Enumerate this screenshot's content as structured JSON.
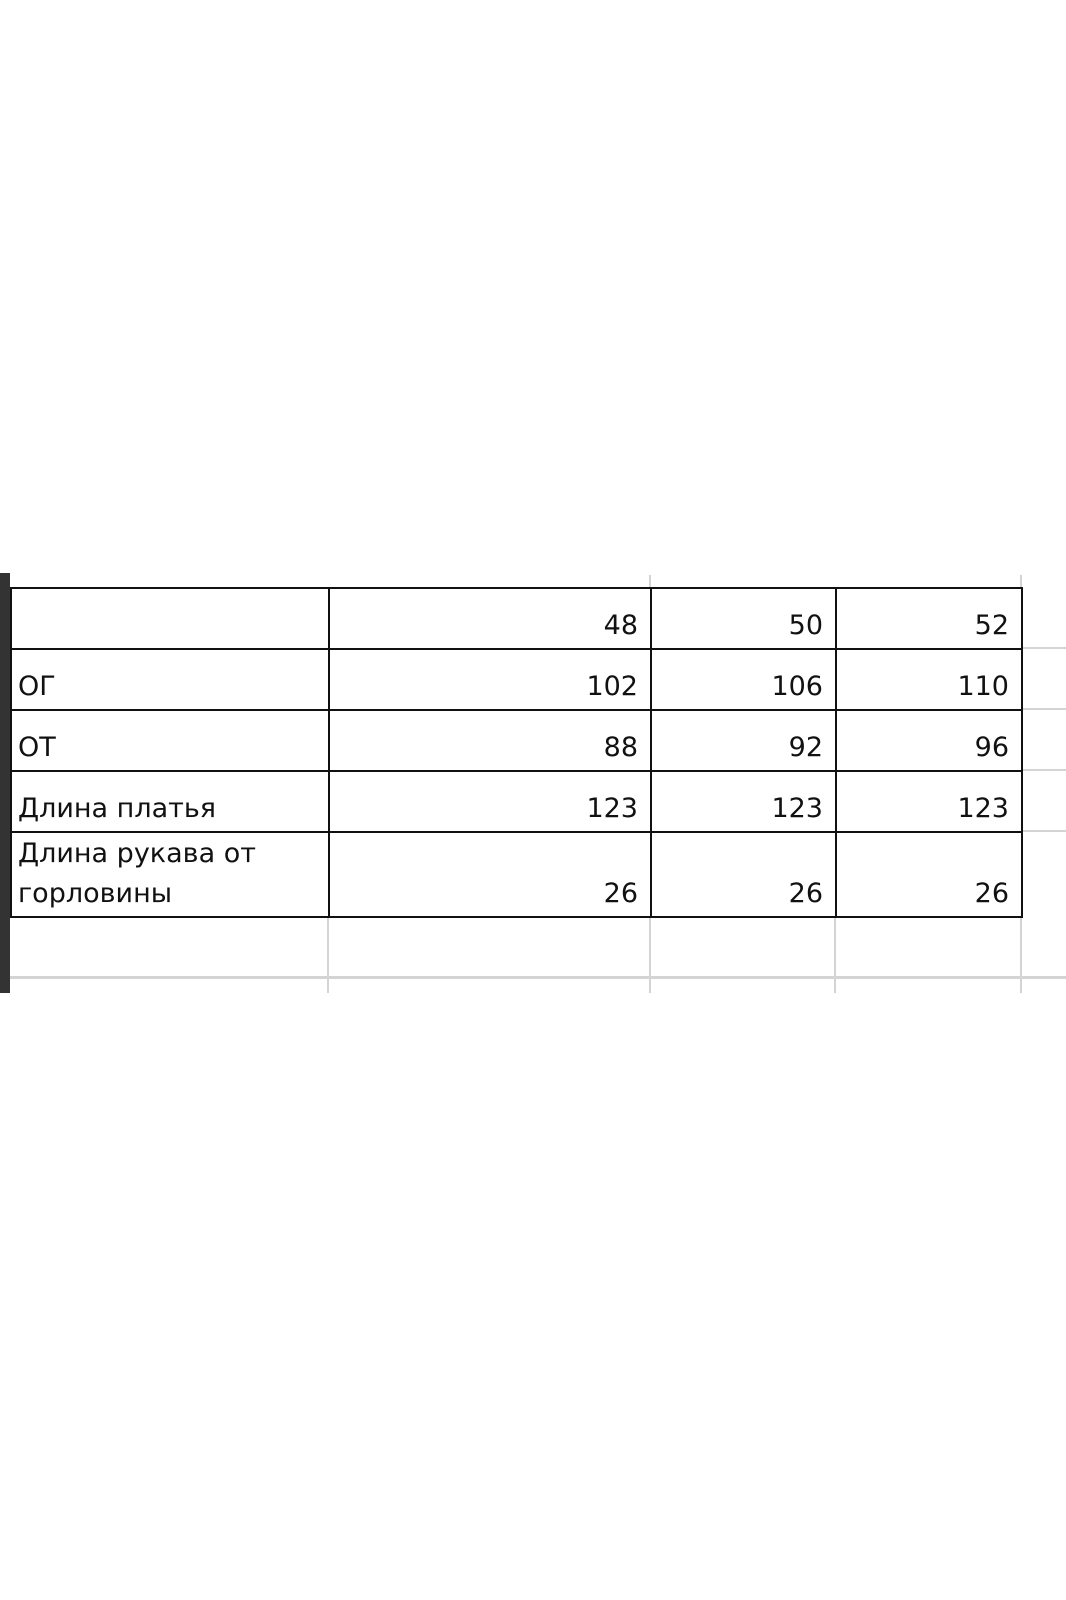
{
  "size_table": {
    "sizes": [
      "48",
      "50",
      "52"
    ],
    "rows": [
      {
        "label": "ОГ",
        "values": [
          "102",
          "106",
          "110"
        ]
      },
      {
        "label": "ОТ",
        "values": [
          "88",
          "92",
          "96"
        ]
      },
      {
        "label": "Длина платья",
        "values": [
          "123",
          "123",
          "123"
        ]
      },
      {
        "label": "Длина рукава от горловины",
        "values": [
          "26",
          "26",
          "26"
        ]
      }
    ]
  }
}
